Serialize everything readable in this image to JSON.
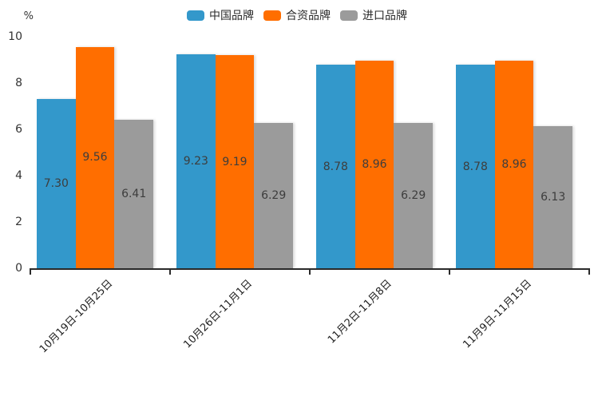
{
  "chart_data": {
    "type": "bar",
    "title": "",
    "unit_label": "%",
    "categories": [
      "10月19日-10月25日",
      "10月26日-11月1日",
      "11月2日-11月8日",
      "11月9日-11月15日"
    ],
    "series": [
      {
        "name": "中国品牌",
        "color": "#3398CB",
        "values": [
          7.3,
          9.23,
          8.78,
          8.78
        ],
        "labels": [
          "7.30",
          "9.23",
          "8.78",
          "8.78"
        ]
      },
      {
        "name": "合资品牌",
        "color": "#FF6E00",
        "values": [
          9.56,
          9.19,
          8.96,
          8.96
        ],
        "labels": [
          "9.56",
          "9.19",
          "8.96",
          "8.96"
        ]
      },
      {
        "name": "进口品牌",
        "color": "#9B9B9B",
        "values": [
          6.41,
          6.29,
          6.29,
          6.13
        ],
        "labels": [
          "6.41",
          "6.29",
          "6.29",
          "6.13"
        ]
      }
    ],
    "y_axis": {
      "min": 0,
      "max": 10,
      "ticks": [
        0,
        2,
        4,
        6,
        8,
        10
      ]
    },
    "legend_position": "top",
    "grid": false,
    "value_label_position": "inside-center"
  },
  "colors": {
    "axis": "#2b2b2b",
    "tick_text": "#333333",
    "bar_value_text": "#3d3d3d",
    "background": "#ffffff"
  }
}
